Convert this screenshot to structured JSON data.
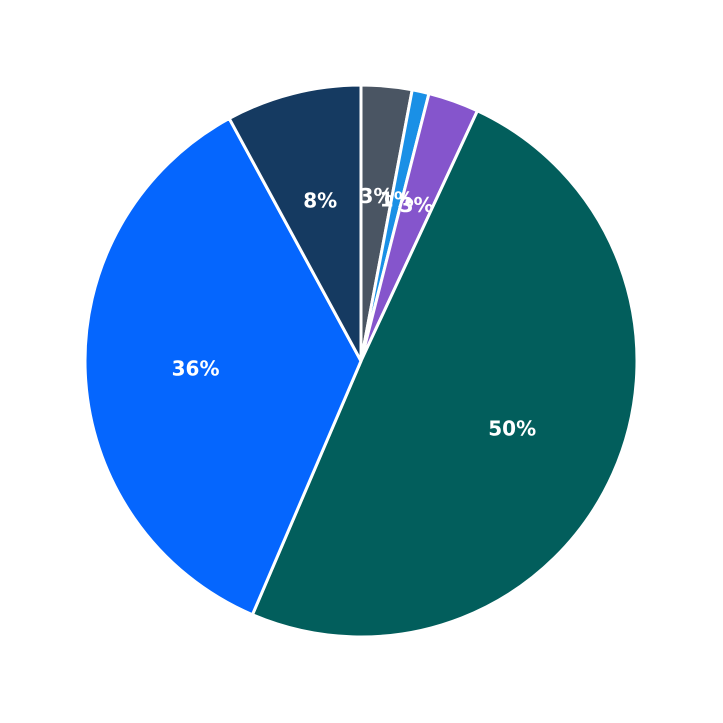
{
  "chart_data": {
    "type": "pie",
    "title": "",
    "start_angle_deg": 90,
    "direction": "clockwise",
    "center": [
      361,
      361
    ],
    "radius": 276,
    "slices": [
      {
        "label": "3%",
        "value": 3,
        "color": "#4a5563"
      },
      {
        "label": "1%",
        "value": 1,
        "color": "#1a90e6"
      },
      {
        "label": "3%",
        "value": 3,
        "color": "#8555cc"
      },
      {
        "label": "50%",
        "value": 50,
        "color": "#025e5c"
      },
      {
        "label": "36%",
        "value": 36,
        "color": "#0566fe"
      },
      {
        "label": "8%",
        "value": 8,
        "color": "#153a61"
      }
    ],
    "legend": null,
    "edge_color": "#ffffff"
  }
}
